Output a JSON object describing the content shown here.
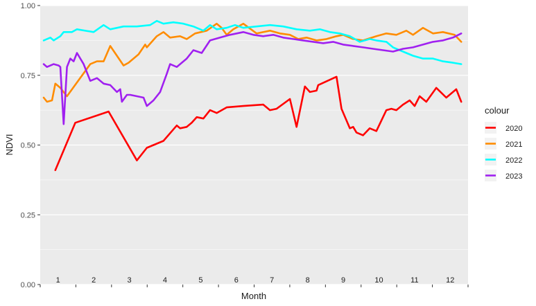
{
  "chart_data": {
    "type": "line",
    "title": "",
    "xlabel": "Month",
    "ylabel": "NDVI",
    "ylim": [
      0,
      1
    ],
    "xlim": [
      0,
      12
    ],
    "yticks": [
      0,
      0.25,
      0.5,
      0.75,
      1
    ],
    "ytick_labels": [
      "0.00",
      "0.25",
      "0.50",
      "0.75",
      "1.00"
    ],
    "x_categories": [
      "1",
      "2",
      "3",
      "4",
      "5",
      "6",
      "7",
      "8",
      "9",
      "10",
      "11",
      "12"
    ],
    "x_label_position": "inside-bottom",
    "grid": true,
    "legend": {
      "title": "colour",
      "position": "right"
    },
    "series": [
      {
        "name": "2020",
        "color": "#ff0000",
        "points": [
          [
            0.35,
            0.41
          ],
          [
            0.95,
            0.58
          ],
          [
            1.95,
            0.62
          ],
          [
            2.8,
            0.445
          ],
          [
            3.1,
            0.49
          ],
          [
            3.6,
            0.515
          ],
          [
            4.0,
            0.57
          ],
          [
            4.1,
            0.56
          ],
          [
            4.3,
            0.565
          ],
          [
            4.45,
            0.58
          ],
          [
            4.6,
            0.6
          ],
          [
            4.8,
            0.595
          ],
          [
            5.0,
            0.625
          ],
          [
            5.2,
            0.615
          ],
          [
            5.5,
            0.635
          ],
          [
            6.0,
            0.64
          ],
          [
            6.6,
            0.645
          ],
          [
            6.8,
            0.625
          ],
          [
            7.0,
            0.63
          ],
          [
            7.4,
            0.665
          ],
          [
            7.6,
            0.565
          ],
          [
            7.85,
            0.71
          ],
          [
            8.0,
            0.69
          ],
          [
            8.2,
            0.695
          ],
          [
            8.25,
            0.715
          ],
          [
            8.8,
            0.745
          ],
          [
            8.95,
            0.63
          ],
          [
            9.2,
            0.56
          ],
          [
            9.3,
            0.565
          ],
          [
            9.4,
            0.545
          ],
          [
            9.6,
            0.535
          ],
          [
            9.8,
            0.56
          ],
          [
            10.0,
            0.55
          ],
          [
            10.3,
            0.625
          ],
          [
            10.45,
            0.63
          ],
          [
            10.6,
            0.625
          ],
          [
            10.8,
            0.645
          ],
          [
            11.0,
            0.66
          ],
          [
            11.15,
            0.64
          ],
          [
            11.3,
            0.675
          ],
          [
            11.5,
            0.655
          ],
          [
            11.8,
            0.705
          ],
          [
            12.1,
            0.67
          ],
          [
            12.4,
            0.7
          ],
          [
            12.55,
            0.655
          ]
        ]
      },
      {
        "name": "2021",
        "color": "#ff8c00",
        "points": [
          [
            0.0,
            0.67
          ],
          [
            0.1,
            0.655
          ],
          [
            0.25,
            0.66
          ],
          [
            0.35,
            0.72
          ],
          [
            0.5,
            0.705
          ],
          [
            0.7,
            0.675
          ],
          [
            1.4,
            0.79
          ],
          [
            1.6,
            0.8
          ],
          [
            1.8,
            0.8
          ],
          [
            2.0,
            0.855
          ],
          [
            2.4,
            0.785
          ],
          [
            2.55,
            0.795
          ],
          [
            2.85,
            0.825
          ],
          [
            3.05,
            0.86
          ],
          [
            3.1,
            0.85
          ],
          [
            3.4,
            0.89
          ],
          [
            3.6,
            0.905
          ],
          [
            3.8,
            0.885
          ],
          [
            4.1,
            0.89
          ],
          [
            4.3,
            0.88
          ],
          [
            4.55,
            0.9
          ],
          [
            4.9,
            0.91
          ],
          [
            5.2,
            0.935
          ],
          [
            5.35,
            0.92
          ],
          [
            5.5,
            0.895
          ],
          [
            5.7,
            0.915
          ],
          [
            6.0,
            0.935
          ],
          [
            6.4,
            0.9
          ],
          [
            6.8,
            0.91
          ],
          [
            7.1,
            0.9
          ],
          [
            7.4,
            0.895
          ],
          [
            7.65,
            0.88
          ],
          [
            7.9,
            0.885
          ],
          [
            8.2,
            0.875
          ],
          [
            8.5,
            0.88
          ],
          [
            8.8,
            0.89
          ],
          [
            9.0,
            0.895
          ],
          [
            9.3,
            0.88
          ],
          [
            9.6,
            0.875
          ],
          [
            10.0,
            0.89
          ],
          [
            10.3,
            0.9
          ],
          [
            10.6,
            0.895
          ],
          [
            10.9,
            0.91
          ],
          [
            11.1,
            0.895
          ],
          [
            11.4,
            0.92
          ],
          [
            11.7,
            0.9
          ],
          [
            12.0,
            0.905
          ],
          [
            12.35,
            0.895
          ],
          [
            12.55,
            0.87
          ]
        ]
      },
      {
        "name": "2022",
        "color": "#00ffff",
        "points": [
          [
            0.0,
            0.875
          ],
          [
            0.2,
            0.885
          ],
          [
            0.3,
            0.875
          ],
          [
            0.5,
            0.89
          ],
          [
            0.6,
            0.905
          ],
          [
            0.85,
            0.905
          ],
          [
            1.0,
            0.915
          ],
          [
            1.5,
            0.905
          ],
          [
            1.8,
            0.93
          ],
          [
            2.0,
            0.915
          ],
          [
            2.4,
            0.925
          ],
          [
            2.8,
            0.925
          ],
          [
            3.2,
            0.93
          ],
          [
            3.4,
            0.945
          ],
          [
            3.6,
            0.935
          ],
          [
            3.9,
            0.94
          ],
          [
            4.2,
            0.935
          ],
          [
            4.5,
            0.925
          ],
          [
            4.8,
            0.91
          ],
          [
            5.0,
            0.93
          ],
          [
            5.2,
            0.915
          ],
          [
            5.5,
            0.92
          ],
          [
            5.75,
            0.93
          ],
          [
            6.0,
            0.92
          ],
          [
            6.4,
            0.925
          ],
          [
            6.8,
            0.93
          ],
          [
            7.2,
            0.925
          ],
          [
            7.6,
            0.915
          ],
          [
            8.0,
            0.91
          ],
          [
            8.3,
            0.915
          ],
          [
            8.6,
            0.905
          ],
          [
            8.9,
            0.9
          ],
          [
            9.2,
            0.89
          ],
          [
            9.5,
            0.87
          ],
          [
            9.8,
            0.88
          ],
          [
            10.0,
            0.875
          ],
          [
            10.3,
            0.87
          ],
          [
            10.5,
            0.85
          ],
          [
            10.8,
            0.835
          ],
          [
            11.1,
            0.82
          ],
          [
            11.4,
            0.81
          ],
          [
            11.7,
            0.81
          ],
          [
            12.0,
            0.8
          ],
          [
            12.3,
            0.795
          ],
          [
            12.55,
            0.79
          ]
        ]
      },
      {
        "name": "2023",
        "color": "#a020f0",
        "points": [
          [
            0.0,
            0.79
          ],
          [
            0.1,
            0.78
          ],
          [
            0.3,
            0.79
          ],
          [
            0.45,
            0.785
          ],
          [
            0.5,
            0.78
          ],
          [
            0.6,
            0.575
          ],
          [
            0.7,
            0.78
          ],
          [
            0.8,
            0.81
          ],
          [
            0.9,
            0.8
          ],
          [
            1.0,
            0.83
          ],
          [
            1.2,
            0.79
          ],
          [
            1.4,
            0.73
          ],
          [
            1.6,
            0.74
          ],
          [
            1.8,
            0.72
          ],
          [
            2.0,
            0.715
          ],
          [
            2.2,
            0.69
          ],
          [
            2.3,
            0.7
          ],
          [
            2.35,
            0.655
          ],
          [
            2.5,
            0.68
          ],
          [
            2.6,
            0.68
          ],
          [
            2.8,
            0.675
          ],
          [
            3.0,
            0.67
          ],
          [
            3.1,
            0.64
          ],
          [
            3.3,
            0.66
          ],
          [
            3.5,
            0.69
          ],
          [
            3.7,
            0.755
          ],
          [
            3.8,
            0.79
          ],
          [
            4.0,
            0.78
          ],
          [
            4.3,
            0.81
          ],
          [
            4.5,
            0.84
          ],
          [
            4.75,
            0.83
          ],
          [
            5.0,
            0.875
          ],
          [
            5.3,
            0.885
          ],
          [
            5.6,
            0.895
          ],
          [
            6.0,
            0.905
          ],
          [
            6.3,
            0.895
          ],
          [
            6.6,
            0.89
          ],
          [
            6.9,
            0.895
          ],
          [
            7.2,
            0.885
          ],
          [
            7.5,
            0.88
          ],
          [
            7.8,
            0.875
          ],
          [
            8.1,
            0.87
          ],
          [
            8.4,
            0.865
          ],
          [
            8.7,
            0.87
          ],
          [
            9.0,
            0.86
          ],
          [
            9.3,
            0.855
          ],
          [
            9.6,
            0.85
          ],
          [
            9.9,
            0.845
          ],
          [
            10.2,
            0.84
          ],
          [
            10.5,
            0.835
          ],
          [
            10.8,
            0.845
          ],
          [
            11.1,
            0.85
          ],
          [
            11.4,
            0.86
          ],
          [
            11.7,
            0.87
          ],
          [
            12.0,
            0.875
          ],
          [
            12.3,
            0.885
          ],
          [
            12.55,
            0.9
          ]
        ]
      }
    ]
  }
}
